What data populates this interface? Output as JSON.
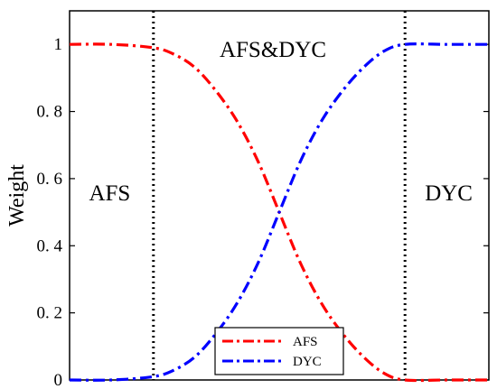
{
  "chart_data": {
    "type": "line",
    "title": "",
    "xlabel": "",
    "ylabel": "Weight",
    "xlim": [
      0,
      1
    ],
    "ylim": [
      0,
      1.1
    ],
    "yticks": [
      {
        "value": 0,
        "label": "0"
      },
      {
        "value": 0.2,
        "label": "0. 2"
      },
      {
        "value": 0.4,
        "label": "0. 4"
      },
      {
        "value": 0.6,
        "label": "0. 6"
      },
      {
        "value": 0.8,
        "label": "0. 8"
      },
      {
        "value": 1,
        "label": "1"
      }
    ],
    "grid": false,
    "legend_position": "bottom-center",
    "boundaries": [
      0.2,
      0.8
    ],
    "region_labels": [
      "AFS",
      "AFS&DYC",
      "DYC"
    ],
    "series": [
      {
        "name": "AFS",
        "color": "#ff0000",
        "style": "dash-dot",
        "x": [
          0,
          0.1,
          0.2,
          0.25,
          0.3,
          0.35,
          0.4,
          0.45,
          0.5,
          0.55,
          0.6,
          0.65,
          0.7,
          0.75,
          0.8,
          0.9,
          1
        ],
        "values": [
          1,
          1,
          0.99,
          0.97,
          0.93,
          0.86,
          0.77,
          0.65,
          0.5,
          0.35,
          0.23,
          0.14,
          0.07,
          0.02,
          0,
          0,
          0
        ]
      },
      {
        "name": "DYC",
        "color": "#0000ff",
        "style": "dash-dot",
        "x": [
          0,
          0.1,
          0.2,
          0.25,
          0.3,
          0.35,
          0.4,
          0.45,
          0.5,
          0.55,
          0.6,
          0.65,
          0.7,
          0.75,
          0.8,
          0.9,
          1
        ],
        "values": [
          0,
          0,
          0.01,
          0.03,
          0.07,
          0.14,
          0.23,
          0.35,
          0.5,
          0.65,
          0.77,
          0.86,
          0.93,
          0.98,
          1,
          1,
          1
        ]
      }
    ]
  }
}
